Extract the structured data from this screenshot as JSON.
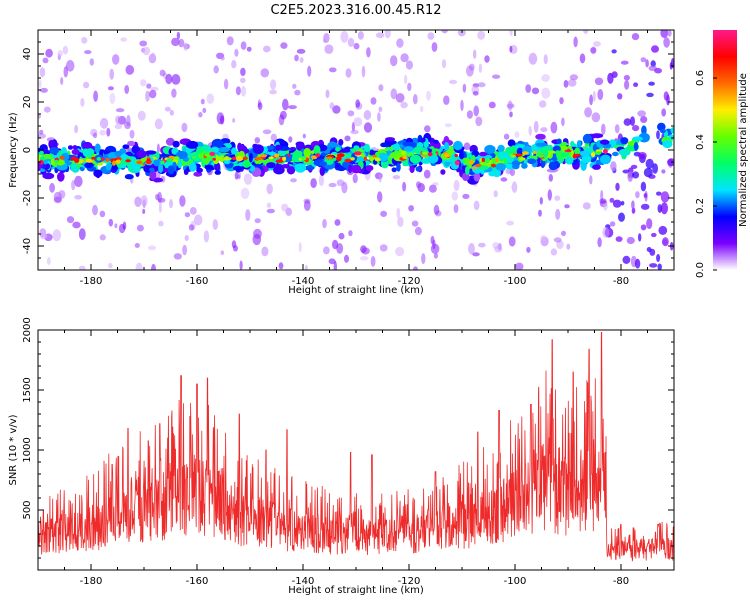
{
  "title": "C2E5.2023.316.00.45.R12",
  "chart_data": [
    {
      "type": "heatmap",
      "xlabel": "Height of straight line (km)",
      "ylabel": "Frequency (Hz)",
      "xlim": [
        -190,
        -70
      ],
      "ylim": [
        -50,
        50
      ],
      "xticks": [
        "-180",
        "-160",
        "-140",
        "-120",
        "-100",
        "-80"
      ],
      "yticks": [
        "-40",
        "-20",
        "0",
        "20",
        "40"
      ],
      "band_center_hz": [
        [
          -189,
          -4
        ],
        [
          -180,
          -4
        ],
        [
          -170,
          -5
        ],
        [
          -160,
          -3
        ],
        [
          -150,
          -3
        ],
        [
          -140,
          -3
        ],
        [
          -130,
          -3
        ],
        [
          -120,
          -2
        ],
        [
          -114,
          -1
        ],
        [
          -108,
          -6
        ],
        [
          -104,
          -5
        ],
        [
          -100,
          -2
        ],
        [
          -95,
          -2
        ],
        [
          -90,
          -1
        ],
        [
          -83,
          -1
        ],
        [
          -80,
          1
        ],
        [
          -75,
          3
        ],
        [
          -71,
          5
        ]
      ],
      "band_halfwidth_hz": 7,
      "gap_km": [
        -82.5,
        -82.5
      ],
      "colorbar": {
        "label": "Normalized spectral amplitude",
        "range": [
          0.0,
          0.75
        ],
        "ticks": [
          "0.0",
          "0.2",
          "0.4",
          "0.6"
        ],
        "colors": [
          "#ffffff",
          "#7a00ff",
          "#0000ff",
          "#00e5ff",
          "#00ff66",
          "#66ff00",
          "#ffee00",
          "#ff6a00",
          "#ff0000",
          "#ff1a8c"
        ]
      }
    },
    {
      "type": "line",
      "xlabel": "Height of straight line (km)",
      "ylabel": "SNR (10 * v/v)",
      "xlim": [
        -190,
        -70
      ],
      "ylim": [
        0,
        2000
      ],
      "xticks": [
        "-180",
        "-160",
        "-140",
        "-120",
        "-100",
        "-80"
      ],
      "yticks": [
        "500",
        "1000",
        "1500",
        "2000"
      ],
      "color": "#ee2a2a",
      "envelope": [
        [
          -190,
          380
        ],
        [
          -186,
          420
        ],
        [
          -182,
          470
        ],
        [
          -178,
          560
        ],
        [
          -174,
          700
        ],
        [
          -170,
          760
        ],
        [
          -166,
          820
        ],
        [
          -162,
          960
        ],
        [
          -158,
          900
        ],
        [
          -154,
          720
        ],
        [
          -150,
          600
        ],
        [
          -146,
          560
        ],
        [
          -142,
          500
        ],
        [
          -138,
          460
        ],
        [
          -134,
          420
        ],
        [
          -130,
          400
        ],
        [
          -126,
          410
        ],
        [
          -122,
          420
        ],
        [
          -118,
          470
        ],
        [
          -114,
          520
        ],
        [
          -110,
          560
        ],
        [
          -106,
          650
        ],
        [
          -102,
          760
        ],
        [
          -98,
          880
        ],
        [
          -94,
          1050
        ],
        [
          -90,
          930
        ],
        [
          -86,
          1000
        ],
        [
          -83,
          1000
        ],
        [
          -82.5,
          240
        ],
        [
          -78,
          240
        ],
        [
          -74,
          250
        ],
        [
          -70,
          260
        ]
      ],
      "peaks": [
        [
          -189,
          500
        ],
        [
          -176,
          880
        ],
        [
          -173,
          1180
        ],
        [
          -167,
          1220
        ],
        [
          -163,
          1620
        ],
        [
          -160,
          1550
        ],
        [
          -158,
          1600
        ],
        [
          -152,
          1300
        ],
        [
          -147,
          1000
        ],
        [
          -143,
          1170
        ],
        [
          -131,
          980
        ],
        [
          -127,
          960
        ],
        [
          -115,
          820
        ],
        [
          -107,
          1150
        ],
        [
          -103,
          1330
        ],
        [
          -97,
          1380
        ],
        [
          -93,
          1920
        ],
        [
          -89,
          1650
        ],
        [
          -86,
          1840
        ],
        [
          -83.7,
          1980
        ],
        [
          -80,
          380
        ],
        [
          -73,
          380
        ]
      ]
    }
  ]
}
